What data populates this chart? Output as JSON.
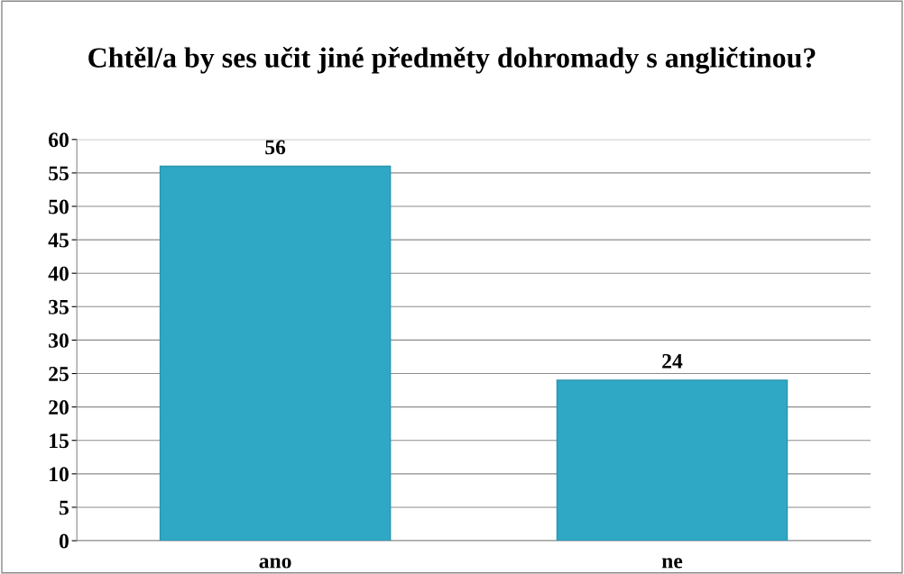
{
  "chart_data": {
    "type": "bar",
    "title": "Chtěl/a by ses učit jiné předměty dohromady s angličtinou?",
    "categories": [
      "ano",
      "ne"
    ],
    "values": [
      56,
      24
    ],
    "color": "#2fa8c6",
    "ylim": [
      0,
      60
    ],
    "yticks": [
      0,
      5,
      10,
      15,
      20,
      25,
      30,
      35,
      40,
      45,
      50,
      55,
      60
    ],
    "grid": "y",
    "data_labels": true
  }
}
